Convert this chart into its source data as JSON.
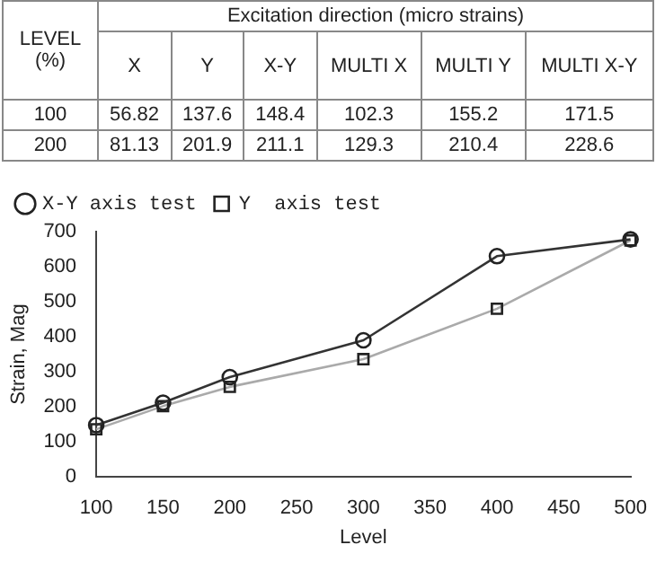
{
  "chart_data": [
    {
      "type": "other",
      "title": "Excitation direction (micro strains)",
      "legend_title": "LEVEL (%)",
      "categories": [
        "X",
        "Y",
        "X-Y",
        "MULTI X",
        "MULTI Y",
        "MULTI X-Y"
      ],
      "data_labels": true,
      "series": [
        {
          "name": "100",
          "values": [
            56.82,
            137.6,
            148.4,
            102.3,
            155.2,
            171.5
          ]
        },
        {
          "name": "200",
          "values": [
            81.13,
            201.9,
            211.1,
            129.3,
            210.4,
            228.6
          ]
        }
      ]
    },
    {
      "type": "line",
      "xlabel": "Level",
      "ylabel": "Strain, Mag",
      "xlim": [
        100,
        500
      ],
      "xticks": [
        100,
        150,
        200,
        250,
        300,
        350,
        400,
        450,
        500
      ],
      "ylim": [
        0,
        700
      ],
      "yticks": [
        0,
        100,
        200,
        300,
        400,
        500,
        600,
        700
      ],
      "grid": false,
      "legend": "top left",
      "series": [
        {
          "name": "X-Y axis test",
          "color": "#333333",
          "marker": "circle",
          "x": [
            100,
            150,
            200,
            300,
            400,
            500
          ],
          "values": [
            148,
            212,
            285,
            390,
            630,
            678
          ]
        },
        {
          "name": "Y  axis test",
          "color": "#aaaaaa",
          "marker": "square",
          "x": [
            100,
            150,
            200,
            300,
            400,
            500
          ],
          "values": [
            136,
            202,
            257,
            336,
            480,
            675
          ]
        }
      ]
    }
  ]
}
